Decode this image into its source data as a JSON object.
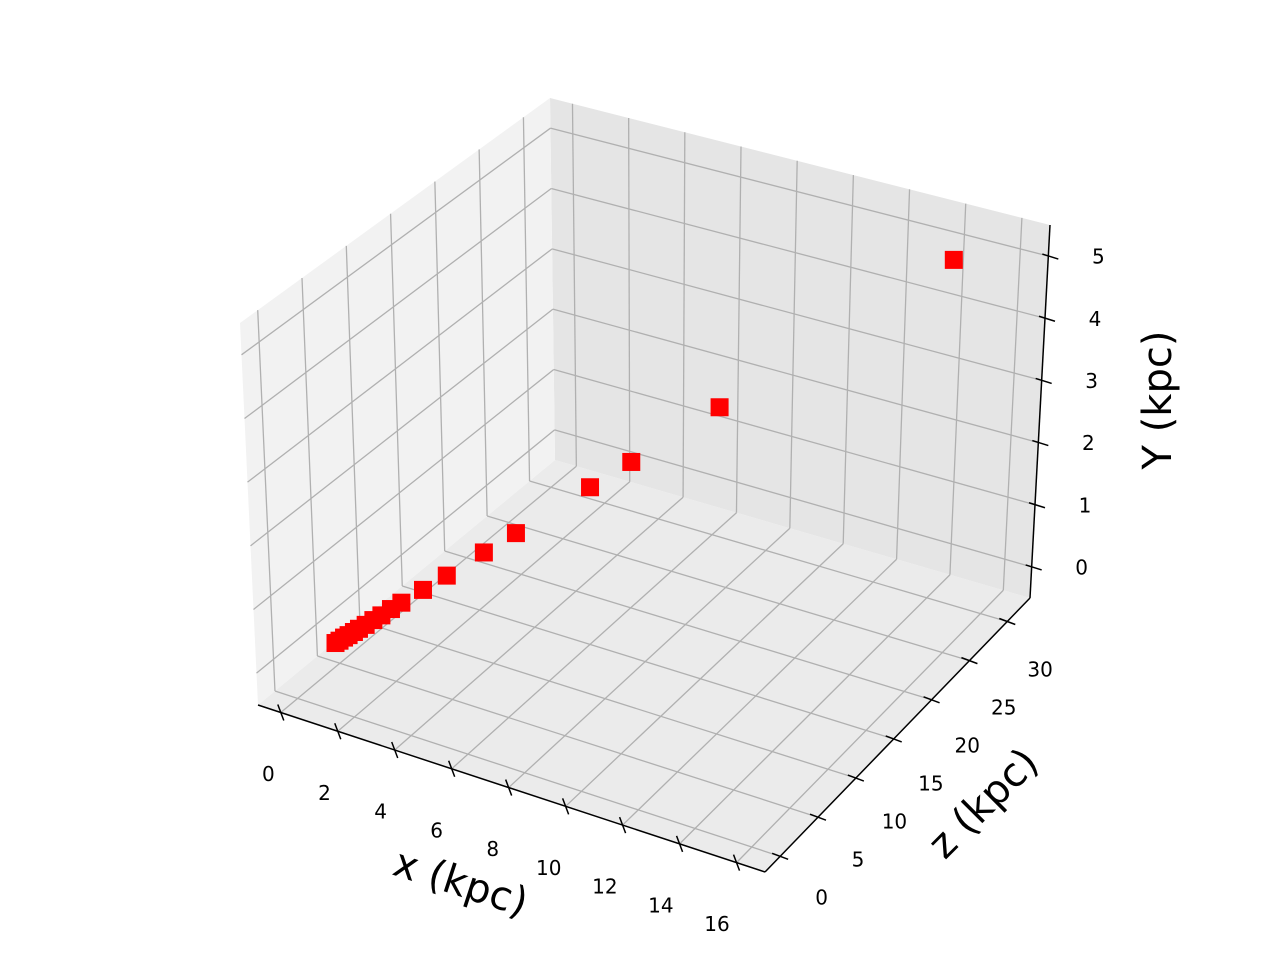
{
  "chart_data": {
    "type": "scatter3d",
    "xlabel": "x (kpc)",
    "zlabel": "z (kpc)",
    "ylabel": "Y (kpc)",
    "x": [
      14.5,
      9.37,
      7.42,
      6.51,
      4.87,
      4.16,
      3.34,
      2.81,
      2.33,
      2.1,
      1.89,
      1.71,
      1.54,
      1.39,
      1.28,
      1.16,
      1.06,
      0.96,
      0.87
    ],
    "z": [
      30,
      19.38,
      15.36,
      13.47,
      10.08,
      8.61,
      6.9,
      5.82,
      4.83,
      4.35,
      3.9,
      3.54,
      3.18,
      2.88,
      2.64,
      2.4,
      2.19,
      1.98,
      1.8
    ],
    "y": [
      5,
      3.23,
      2.56,
      2.25,
      1.68,
      1.44,
      1.15,
      0.97,
      0.81,
      0.73,
      0.65,
      0.59,
      0.53,
      0.48,
      0.44,
      0.4,
      0.37,
      0.33,
      0.3
    ],
    "color": "#ff0000",
    "marker": "square",
    "xlim": [
      -0.8,
      17
    ],
    "xticks": [
      0,
      2,
      4,
      6,
      8,
      10,
      12,
      14,
      16
    ],
    "zlim": [
      -2,
      33
    ],
    "zticks": [
      0,
      5,
      10,
      15,
      20,
      25,
      30
    ],
    "ylim": [
      -0.5,
      5.5
    ],
    "yticks": [
      0,
      1,
      2,
      3,
      4,
      5
    ],
    "grid": true
  }
}
